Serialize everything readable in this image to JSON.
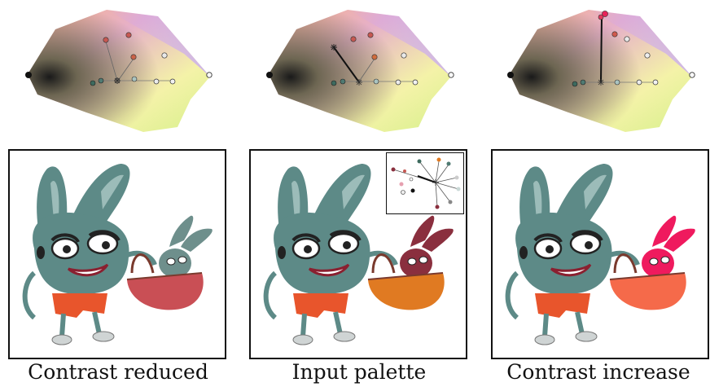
{
  "figure": {
    "captions": [
      "Contrast reduced",
      "Input palette",
      "Contrast increase"
    ]
  },
  "colors": {
    "bunny_body": "#5d8a87",
    "bunny_body_light": "#9cbcb9",
    "bunny_shorts": "#e8552c",
    "basket_reduced": "#c94f55",
    "basket_input": "#e07a22",
    "basket_increase": "#f56a4a",
    "small_bunny_reduced": "#6e8f8c",
    "small_bunny_input": "#8a2f3e",
    "small_bunny_increase": "#ef1a5e"
  }
}
